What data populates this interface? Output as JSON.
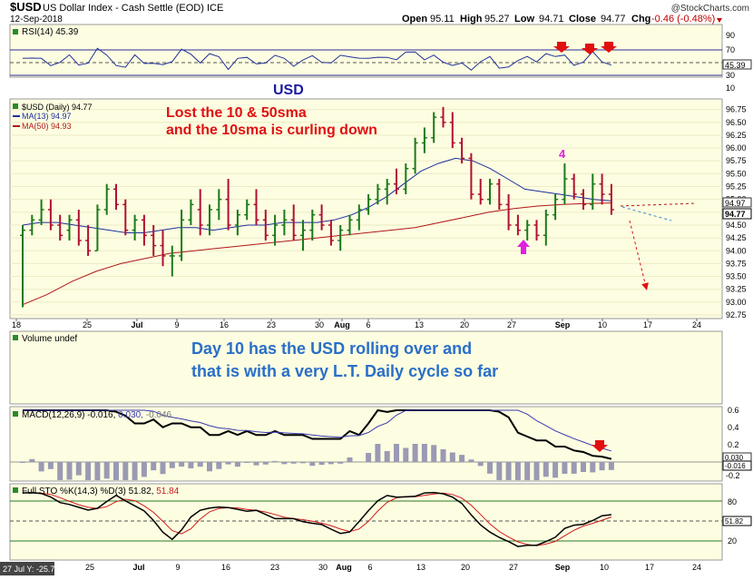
{
  "header": {
    "symbol": "$USD",
    "description": "US Dollar Index - Cash Settle (EOD) ICE",
    "date": "12-Sep-2018",
    "watermark": "@StockCharts.com",
    "open_label": "Open",
    "open": "95.11",
    "high_label": "High",
    "high": "95.27",
    "low_label": "Low",
    "low": "94.71",
    "close_label": "Close",
    "close": "94.77",
    "chg_label": "Chg",
    "chg": "-0.46 (-0.48%)"
  },
  "colors": {
    "panel_bg": "#fdfde1",
    "up": "#1a7a1a",
    "down": "#b01030",
    "ma13": "#1c2fa0",
    "ma50": "#b01818",
    "annotation_red": "#e01010",
    "annotation_blue": "#2a6fc8",
    "magenta": "#e020e0",
    "usd_label": "#1a1aa0"
  },
  "rsi_panel": {
    "label": "RSI(14) 45.39",
    "levels": [
      "90",
      "70",
      "50",
      "30",
      "10"
    ],
    "current": "45.39"
  },
  "price_panel": {
    "legend": {
      "title": "$USD (Daily) 94.77",
      "ma13": "MA(13) 94.97",
      "ma50": "MA(50) 94.93"
    },
    "y_labels": [
      "96.75",
      "96.50",
      "96.25",
      "96.00",
      "95.75",
      "95.50",
      "95.25",
      "95.00",
      "94.75",
      "94.50",
      "94.25",
      "94.00",
      "93.75",
      "93.50",
      "93.25",
      "93.00",
      "92.75"
    ],
    "tag_ma": "94.97",
    "tag_close": "94.77",
    "usd_title": "USD",
    "annotation": [
      "Lost the 10 & 50sma",
      "and the 10sma is curling down"
    ],
    "cycle_marker": "4"
  },
  "volume_panel": {
    "label": "Volume undef",
    "annotation": [
      "Day 10 has the USD rolling over and",
      "that is with a very L.T. Daily cycle so far"
    ]
  },
  "macd_panel": {
    "label_main": "MACD(12,26,9) -0.016,",
    "label_signal": "0.030,",
    "label_hist": "-0.046",
    "y_labels": [
      "0.6",
      "0.4",
      "0.2",
      "-0.2"
    ],
    "tag_a": "0.030",
    "tag_b": "-0.016"
  },
  "sto_panel": {
    "label_main": "Full STO %K(14,3) %D(3) 51.82,",
    "label_d": "51.84",
    "y_labels": [
      "80",
      "20"
    ],
    "tag": "51.82"
  },
  "x_axis": {
    "labels_top": [
      "18",
      "25",
      "Jul",
      "9",
      "16",
      "23",
      "30",
      "Aug",
      "6",
      "13",
      "20",
      "27",
      "Sep",
      "10",
      "17",
      "24"
    ],
    "labels_bottom": [
      "25",
      "Jul",
      "9",
      "16",
      "23",
      "30",
      "Aug",
      "6",
      "13",
      "20",
      "27",
      "Sep",
      "10",
      "17",
      "24"
    ],
    "footer_note": "27 Jul Y: -25.71"
  },
  "chart_data": {
    "type": "ohlc",
    "title": "$USD US Dollar Index - Cash Settle (EOD) ICE",
    "ylim": [
      92.75,
      96.85
    ],
    "series": [
      {
        "name": "$USD (Daily)",
        "kind": "ohlc",
        "values": [
          [
            94.3,
            94.5,
            92.9,
            94.4
          ],
          [
            94.4,
            94.7,
            94.3,
            94.6
          ],
          [
            94.6,
            95.0,
            94.5,
            94.8
          ],
          [
            94.8,
            95.0,
            94.4,
            94.5
          ],
          [
            94.5,
            94.7,
            94.2,
            94.3
          ],
          [
            94.4,
            94.7,
            94.2,
            94.6
          ],
          [
            94.6,
            94.8,
            94.1,
            94.2
          ],
          [
            94.2,
            94.5,
            93.9,
            94.0
          ],
          [
            94.0,
            94.9,
            94.0,
            94.8
          ],
          [
            94.8,
            95.3,
            94.7,
            95.2
          ],
          [
            95.2,
            95.3,
            94.8,
            94.9
          ],
          [
            94.9,
            95.0,
            94.3,
            94.4
          ],
          [
            94.4,
            94.7,
            94.2,
            94.6
          ],
          [
            94.6,
            94.7,
            94.1,
            94.3
          ],
          [
            94.3,
            94.5,
            93.9,
            94.1
          ],
          [
            94.1,
            94.4,
            93.7,
            93.9
          ],
          [
            93.9,
            94.1,
            93.5,
            93.9
          ],
          [
            93.9,
            94.8,
            93.8,
            94.6
          ],
          [
            94.6,
            95.0,
            94.5,
            94.9
          ],
          [
            94.8,
            95.2,
            94.3,
            94.5
          ],
          [
            94.5,
            94.9,
            94.3,
            94.8
          ],
          [
            94.8,
            95.2,
            94.6,
            95.0
          ],
          [
            95.0,
            95.4,
            94.4,
            94.5
          ],
          [
            94.5,
            94.8,
            94.3,
            94.7
          ],
          [
            94.7,
            95.0,
            94.6,
            94.9
          ],
          [
            94.9,
            95.2,
            94.5,
            94.6
          ],
          [
            94.6,
            94.8,
            94.2,
            94.3
          ],
          [
            94.3,
            94.7,
            94.1,
            94.5
          ],
          [
            94.5,
            94.8,
            94.3,
            94.6
          ],
          [
            94.6,
            94.9,
            94.2,
            94.3
          ],
          [
            94.3,
            94.6,
            94.0,
            94.4
          ],
          [
            94.4,
            94.8,
            94.2,
            94.7
          ],
          [
            94.7,
            94.9,
            94.4,
            94.5
          ],
          [
            94.5,
            94.6,
            94.1,
            94.2
          ],
          [
            94.2,
            94.5,
            94.0,
            94.4
          ],
          [
            94.4,
            94.7,
            94.3,
            94.6
          ],
          [
            94.6,
            94.9,
            94.4,
            94.8
          ],
          [
            94.8,
            95.1,
            94.7,
            95.0
          ],
          [
            95.0,
            95.3,
            94.9,
            95.2
          ],
          [
            95.2,
            95.4,
            94.9,
            95.3
          ],
          [
            95.3,
            95.6,
            95.1,
            95.2
          ],
          [
            95.2,
            95.7,
            95.1,
            95.6
          ],
          [
            95.6,
            96.2,
            95.5,
            96.1
          ],
          [
            96.1,
            96.4,
            95.9,
            96.2
          ],
          [
            96.2,
            96.7,
            96.1,
            96.6
          ],
          [
            96.6,
            96.8,
            96.4,
            96.5
          ],
          [
            96.5,
            96.7,
            96.0,
            96.1
          ],
          [
            96.1,
            96.2,
            95.7,
            95.8
          ],
          [
            95.8,
            95.9,
            95.0,
            95.1
          ],
          [
            95.1,
            95.4,
            94.9,
            95.0
          ],
          [
            95.0,
            95.4,
            94.9,
            95.3
          ],
          [
            95.3,
            95.4,
            94.8,
            94.9
          ],
          [
            94.9,
            95.1,
            94.4,
            94.5
          ],
          [
            94.5,
            94.7,
            94.3,
            94.4
          ],
          [
            94.4,
            94.6,
            94.2,
            94.5
          ],
          [
            94.5,
            94.6,
            94.2,
            94.3
          ],
          [
            94.3,
            94.8,
            94.1,
            94.7
          ],
          [
            94.7,
            95.1,
            94.6,
            95.0
          ],
          [
            95.0,
            95.7,
            94.9,
            95.4
          ],
          [
            95.4,
            95.5,
            95.0,
            95.1
          ],
          [
            95.1,
            95.2,
            94.8,
            94.9
          ],
          [
            94.9,
            95.5,
            94.8,
            95.3
          ],
          [
            95.3,
            95.5,
            94.9,
            95.1
          ],
          [
            95.1,
            95.3,
            94.7,
            94.8
          ]
        ]
      },
      {
        "name": "MA(13)",
        "kind": "line",
        "values": [
          94.5,
          94.55,
          94.55,
          94.5,
          94.45,
          94.4,
          94.35,
          94.35,
          94.4,
          94.45,
          94.45,
          94.4,
          94.45,
          94.5,
          94.5,
          94.55,
          94.55,
          94.55,
          94.6,
          94.7,
          94.85,
          95.05,
          95.3,
          95.55,
          95.7,
          95.8,
          95.75,
          95.6,
          95.4,
          95.2,
          95.15,
          95.1,
          95.05,
          95.0,
          94.97
        ]
      },
      {
        "name": "MA(50)",
        "kind": "line",
        "values": [
          92.95,
          93.15,
          93.4,
          93.6,
          93.75,
          93.85,
          93.95,
          94.0,
          94.05,
          94.1,
          94.15,
          94.2,
          94.25,
          94.3,
          94.35,
          94.4,
          94.45,
          94.55,
          94.65,
          94.75,
          94.82,
          94.87,
          94.9,
          94.92,
          94.93
        ]
      }
    ]
  }
}
